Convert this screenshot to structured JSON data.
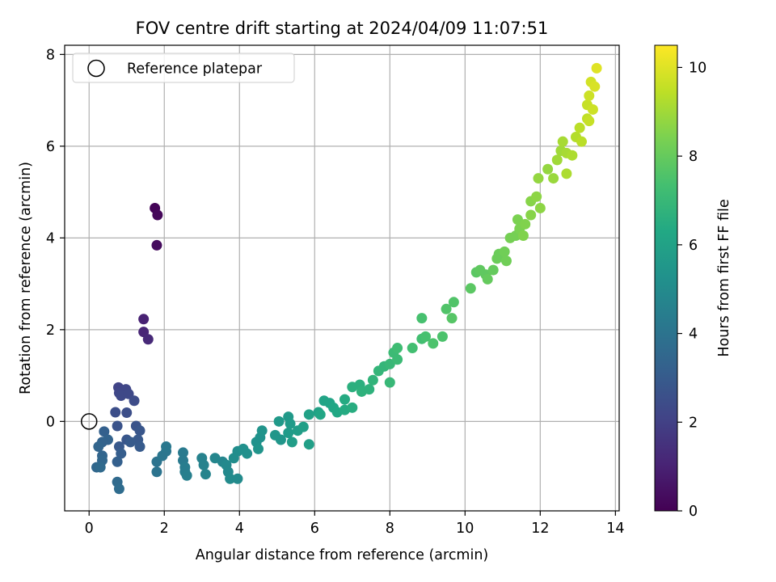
{
  "chart_data": {
    "type": "scatter",
    "title": "FOV centre drift starting at 2024/04/09 11:07:51",
    "xlabel": "Angular distance from reference (arcmin)",
    "ylabel": "Rotation from reference (arcmin)",
    "xlim": [
      -0.65,
      14.1
    ],
    "ylim": [
      -1.95,
      8.2
    ],
    "xticks": [
      0,
      2,
      4,
      6,
      8,
      10,
      12,
      14
    ],
    "yticks": [
      0,
      2,
      4,
      6,
      8
    ],
    "grid": true,
    "legend": {
      "placement": "top-left",
      "entries": [
        "Reference platepar"
      ]
    },
    "reference_point": {
      "x": 0,
      "y": 0,
      "label": "Reference platepar",
      "marker": "open-circle"
    },
    "colorbar": {
      "label": "Hours from first FF file",
      "range": [
        0,
        10.5
      ],
      "ticks": [
        0,
        2,
        4,
        6,
        8,
        10
      ],
      "colormap": "viridis"
    },
    "series": [
      {
        "points": [
          {
            "x": 1.75,
            "y": 4.65,
            "c": 0.1
          },
          {
            "x": 1.82,
            "y": 4.5,
            "c": 0.2
          },
          {
            "x": 1.8,
            "y": 3.84,
            "c": 0.3
          },
          {
            "x": 1.45,
            "y": 2.23,
            "c": 1.0
          },
          {
            "x": 1.45,
            "y": 1.95,
            "c": 1.1
          },
          {
            "x": 1.57,
            "y": 1.79,
            "c": 1.2
          },
          {
            "x": 0.78,
            "y": 0.74,
            "c": 2.1
          },
          {
            "x": 0.98,
            "y": 0.7,
            "c": 2.2
          },
          {
            "x": 0.8,
            "y": 0.62,
            "c": 2.2
          },
          {
            "x": 0.85,
            "y": 0.56,
            "c": 2.3
          },
          {
            "x": 1.05,
            "y": 0.6,
            "c": 2.3
          },
          {
            "x": 1.2,
            "y": 0.45,
            "c": 2.4
          },
          {
            "x": 0.7,
            "y": 0.2,
            "c": 2.5
          },
          {
            "x": 1.0,
            "y": 0.19,
            "c": 2.5
          },
          {
            "x": 0.75,
            "y": -0.1,
            "c": 2.7
          },
          {
            "x": 1.25,
            "y": -0.1,
            "c": 2.7
          },
          {
            "x": 1.35,
            "y": -0.2,
            "c": 2.8
          },
          {
            "x": 1.0,
            "y": -0.4,
            "c": 2.8
          },
          {
            "x": 1.3,
            "y": -0.4,
            "c": 2.9
          },
          {
            "x": 0.8,
            "y": -0.55,
            "c": 2.9
          },
          {
            "x": 1.1,
            "y": -0.45,
            "c": 3.0
          },
          {
            "x": 1.35,
            "y": -0.55,
            "c": 3.0
          },
          {
            "x": 0.85,
            "y": -0.7,
            "c": 3.1
          },
          {
            "x": 0.75,
            "y": -0.88,
            "c": 3.2
          },
          {
            "x": 0.4,
            "y": -0.22,
            "c": 3.2
          },
          {
            "x": 0.5,
            "y": -0.4,
            "c": 3.3
          },
          {
            "x": 0.35,
            "y": -0.45,
            "c": 3.3
          },
          {
            "x": 0.25,
            "y": -0.55,
            "c": 3.4
          },
          {
            "x": 0.35,
            "y": -0.75,
            "c": 3.4
          },
          {
            "x": 0.35,
            "y": -0.85,
            "c": 3.5
          },
          {
            "x": 0.2,
            "y": -1.0,
            "c": 3.5
          },
          {
            "x": 0.3,
            "y": -1.0,
            "c": 3.6
          },
          {
            "x": 0.75,
            "y": -1.32,
            "c": 3.6
          },
          {
            "x": 0.8,
            "y": -1.47,
            "c": 3.7
          },
          {
            "x": 1.8,
            "y": -1.1,
            "c": 4.0
          },
          {
            "x": 1.8,
            "y": -0.88,
            "c": 4.0
          },
          {
            "x": 1.95,
            "y": -0.75,
            "c": 4.1
          },
          {
            "x": 2.05,
            "y": -0.65,
            "c": 4.1
          },
          {
            "x": 2.05,
            "y": -0.55,
            "c": 4.2
          },
          {
            "x": 2.5,
            "y": -0.68,
            "c": 4.3
          },
          {
            "x": 2.5,
            "y": -0.85,
            "c": 4.3
          },
          {
            "x": 2.55,
            "y": -1.0,
            "c": 4.4
          },
          {
            "x": 2.55,
            "y": -1.1,
            "c": 4.4
          },
          {
            "x": 2.6,
            "y": -1.18,
            "c": 4.5
          },
          {
            "x": 3.0,
            "y": -0.8,
            "c": 4.6
          },
          {
            "x": 3.05,
            "y": -0.95,
            "c": 4.6
          },
          {
            "x": 3.1,
            "y": -1.15,
            "c": 4.7
          },
          {
            "x": 3.35,
            "y": -0.8,
            "c": 4.8
          },
          {
            "x": 3.55,
            "y": -0.88,
            "c": 4.8
          },
          {
            "x": 3.65,
            "y": -0.95,
            "c": 4.9
          },
          {
            "x": 3.7,
            "y": -1.1,
            "c": 4.9
          },
          {
            "x": 3.75,
            "y": -1.25,
            "c": 5.0
          },
          {
            "x": 3.95,
            "y": -1.25,
            "c": 5.0
          },
          {
            "x": 3.85,
            "y": -0.8,
            "c": 5.1
          },
          {
            "x": 3.95,
            "y": -0.65,
            "c": 5.1
          },
          {
            "x": 4.1,
            "y": -0.6,
            "c": 5.2
          },
          {
            "x": 4.2,
            "y": -0.7,
            "c": 5.2
          },
          {
            "x": 4.45,
            "y": -0.45,
            "c": 5.3
          },
          {
            "x": 4.55,
            "y": -0.35,
            "c": 5.3
          },
          {
            "x": 4.6,
            "y": -0.2,
            "c": 5.4
          },
          {
            "x": 4.5,
            "y": -0.6,
            "c": 5.4
          },
          {
            "x": 4.95,
            "y": -0.3,
            "c": 5.5
          },
          {
            "x": 5.1,
            "y": -0.4,
            "c": 5.5
          },
          {
            "x": 5.05,
            "y": 0.0,
            "c": 5.6
          },
          {
            "x": 5.3,
            "y": 0.1,
            "c": 5.6
          },
          {
            "x": 5.35,
            "y": -0.05,
            "c": 5.7
          },
          {
            "x": 5.3,
            "y": -0.25,
            "c": 5.7
          },
          {
            "x": 5.4,
            "y": -0.45,
            "c": 5.8
          },
          {
            "x": 5.55,
            "y": -0.2,
            "c": 5.8
          },
          {
            "x": 5.7,
            "y": -0.12,
            "c": 5.9
          },
          {
            "x": 5.85,
            "y": -0.5,
            "c": 5.9
          },
          {
            "x": 5.85,
            "y": 0.15,
            "c": 6.0
          },
          {
            "x": 6.1,
            "y": 0.2,
            "c": 6.0
          },
          {
            "x": 6.25,
            "y": 0.45,
            "c": 6.1
          },
          {
            "x": 6.4,
            "y": 0.4,
            "c": 6.1
          },
          {
            "x": 6.15,
            "y": 0.15,
            "c": 6.2
          },
          {
            "x": 6.5,
            "y": 0.3,
            "c": 6.2
          },
          {
            "x": 6.6,
            "y": 0.2,
            "c": 6.3
          },
          {
            "x": 6.8,
            "y": 0.48,
            "c": 6.4
          },
          {
            "x": 6.8,
            "y": 0.25,
            "c": 6.4
          },
          {
            "x": 7.0,
            "y": 0.3,
            "c": 6.5
          },
          {
            "x": 7.0,
            "y": 0.75,
            "c": 6.6
          },
          {
            "x": 7.2,
            "y": 0.8,
            "c": 6.6
          },
          {
            "x": 7.25,
            "y": 0.65,
            "c": 6.7
          },
          {
            "x": 7.45,
            "y": 0.7,
            "c": 6.7
          },
          {
            "x": 7.55,
            "y": 0.9,
            "c": 6.8
          },
          {
            "x": 7.7,
            "y": 1.1,
            "c": 6.9
          },
          {
            "x": 7.85,
            "y": 1.2,
            "c": 6.9
          },
          {
            "x": 8.0,
            "y": 1.25,
            "c": 7.0
          },
          {
            "x": 8.0,
            "y": 0.85,
            "c": 7.0
          },
          {
            "x": 8.2,
            "y": 1.35,
            "c": 7.1
          },
          {
            "x": 8.1,
            "y": 1.5,
            "c": 7.1
          },
          {
            "x": 8.2,
            "y": 1.6,
            "c": 7.2
          },
          {
            "x": 8.6,
            "y": 1.6,
            "c": 7.3
          },
          {
            "x": 8.85,
            "y": 1.8,
            "c": 7.3
          },
          {
            "x": 8.95,
            "y": 1.85,
            "c": 7.4
          },
          {
            "x": 8.85,
            "y": 2.25,
            "c": 7.4
          },
          {
            "x": 9.15,
            "y": 1.7,
            "c": 7.5
          },
          {
            "x": 9.4,
            "y": 1.85,
            "c": 7.5
          },
          {
            "x": 9.5,
            "y": 2.45,
            "c": 7.6
          },
          {
            "x": 9.7,
            "y": 2.6,
            "c": 7.6
          },
          {
            "x": 9.65,
            "y": 2.25,
            "c": 7.7
          },
          {
            "x": 10.15,
            "y": 2.9,
            "c": 7.8
          },
          {
            "x": 10.3,
            "y": 3.25,
            "c": 7.8
          },
          {
            "x": 10.4,
            "y": 3.3,
            "c": 7.9
          },
          {
            "x": 10.55,
            "y": 3.2,
            "c": 7.9
          },
          {
            "x": 10.6,
            "y": 3.1,
            "c": 8.0
          },
          {
            "x": 10.75,
            "y": 3.3,
            "c": 8.0
          },
          {
            "x": 10.85,
            "y": 3.55,
            "c": 8.1
          },
          {
            "x": 10.9,
            "y": 3.65,
            "c": 8.1
          },
          {
            "x": 11.05,
            "y": 3.7,
            "c": 8.2
          },
          {
            "x": 11.1,
            "y": 3.5,
            "c": 8.2
          },
          {
            "x": 11.2,
            "y": 4.0,
            "c": 8.3
          },
          {
            "x": 11.35,
            "y": 4.05,
            "c": 8.3
          },
          {
            "x": 11.45,
            "y": 4.2,
            "c": 8.4
          },
          {
            "x": 11.4,
            "y": 4.4,
            "c": 8.4
          },
          {
            "x": 11.55,
            "y": 4.05,
            "c": 8.5
          },
          {
            "x": 11.6,
            "y": 4.3,
            "c": 8.5
          },
          {
            "x": 11.75,
            "y": 4.5,
            "c": 8.6
          },
          {
            "x": 11.75,
            "y": 4.8,
            "c": 8.6
          },
          {
            "x": 11.9,
            "y": 4.9,
            "c": 8.7
          },
          {
            "x": 12.0,
            "y": 4.65,
            "c": 8.7
          },
          {
            "x": 11.95,
            "y": 5.3,
            "c": 8.8
          },
          {
            "x": 12.2,
            "y": 5.5,
            "c": 8.8
          },
          {
            "x": 12.35,
            "y": 5.3,
            "c": 8.9
          },
          {
            "x": 12.45,
            "y": 5.7,
            "c": 9.0
          },
          {
            "x": 12.55,
            "y": 5.9,
            "c": 9.0
          },
          {
            "x": 12.6,
            "y": 6.1,
            "c": 9.1
          },
          {
            "x": 12.7,
            "y": 5.85,
            "c": 9.1
          },
          {
            "x": 12.7,
            "y": 5.4,
            "c": 9.2
          },
          {
            "x": 12.85,
            "y": 5.8,
            "c": 9.2
          },
          {
            "x": 12.95,
            "y": 6.2,
            "c": 9.3
          },
          {
            "x": 13.05,
            "y": 6.4,
            "c": 9.4
          },
          {
            "x": 13.1,
            "y": 6.1,
            "c": 9.4
          },
          {
            "x": 13.25,
            "y": 6.6,
            "c": 9.5
          },
          {
            "x": 13.25,
            "y": 6.9,
            "c": 9.6
          },
          {
            "x": 13.3,
            "y": 7.1,
            "c": 9.7
          },
          {
            "x": 13.35,
            "y": 7.4,
            "c": 9.8
          },
          {
            "x": 13.45,
            "y": 7.3,
            "c": 9.9
          },
          {
            "x": 13.5,
            "y": 7.7,
            "c": 10.0
          },
          {
            "x": 13.3,
            "y": 6.55,
            "c": 9.6
          },
          {
            "x": 13.4,
            "y": 6.8,
            "c": 9.7
          }
        ]
      }
    ]
  }
}
